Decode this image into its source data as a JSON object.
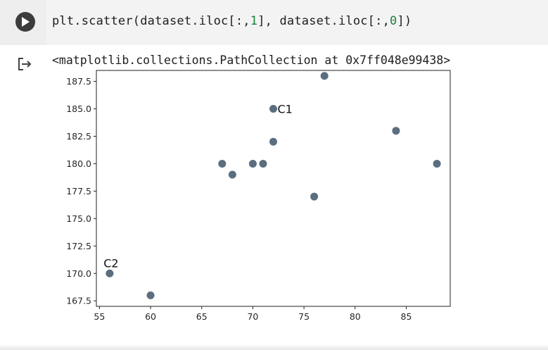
{
  "cell": {
    "code": {
      "prefix": "plt.scatter(dataset.iloc[:,",
      "arg1": "1",
      "middle": "], dataset.iloc[:,",
      "arg2": "0",
      "suffix": "])"
    },
    "output_text": "<matplotlib.collections.PathCollection at 0x7ff048e99438>",
    "accent_color": "#1a7f37",
    "run_button_color": "#3c3c3c"
  },
  "chart_data": {
    "type": "scatter",
    "title": "",
    "xlabel": "",
    "ylabel": "",
    "grid": false,
    "marker_color": "#5a6e7f",
    "xlim": [
      54.7,
      89.3
    ],
    "ylim": [
      167.0,
      188.5
    ],
    "x_ticks": [
      55,
      60,
      65,
      70,
      75,
      80,
      85
    ],
    "y_ticks": [
      167.5,
      170.0,
      172.5,
      175.0,
      177.5,
      180.0,
      182.5,
      185.0,
      187.5
    ],
    "x_tick_labels": [
      "55",
      "60",
      "65",
      "70",
      "75",
      "80",
      "85"
    ],
    "y_tick_labels": [
      "167.5",
      "170.0",
      "172.5",
      "175.0",
      "177.5",
      "180.0",
      "182.5",
      "185.0",
      "187.5"
    ],
    "points": [
      {
        "x": 56,
        "y": 170
      },
      {
        "x": 60,
        "y": 168
      },
      {
        "x": 67,
        "y": 180
      },
      {
        "x": 68,
        "y": 179
      },
      {
        "x": 70,
        "y": 180
      },
      {
        "x": 71,
        "y": 180
      },
      {
        "x": 72,
        "y": 185
      },
      {
        "x": 72,
        "y": 182
      },
      {
        "x": 76,
        "y": 177
      },
      {
        "x": 77,
        "y": 188
      },
      {
        "x": 84,
        "y": 183
      },
      {
        "x": 88,
        "y": 180
      }
    ],
    "annotations": [
      {
        "text": "C1",
        "x": 72,
        "y": 185
      },
      {
        "text": "C2",
        "x": 56,
        "y": 170
      }
    ]
  }
}
